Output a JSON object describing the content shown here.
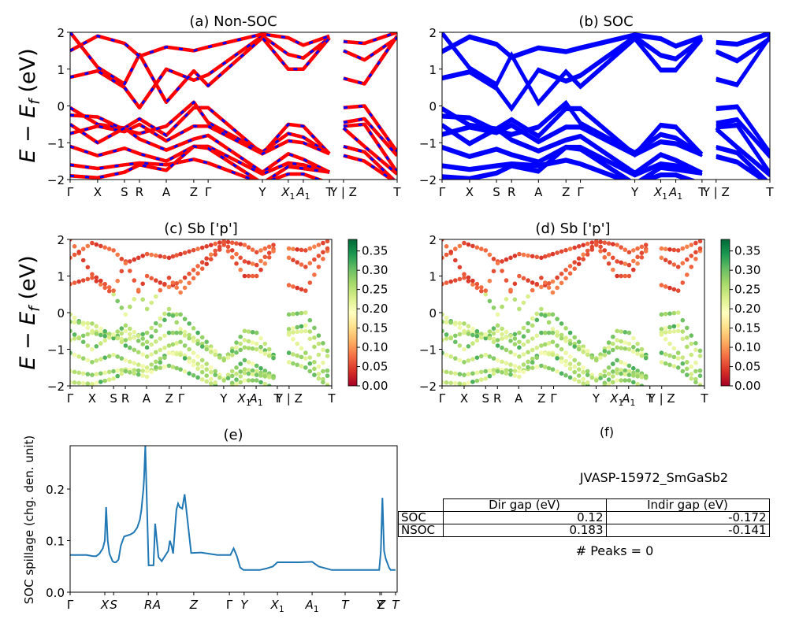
{
  "figure": {
    "ylabel_band": "E − E_f (eV)",
    "panels": {
      "a": {
        "title": "(a) Non-SOC"
      },
      "b": {
        "title": "(b) SOC"
      },
      "c": {
        "title": "(c)  Sb ['p']"
      },
      "d": {
        "title": "(d) Sb ['p']"
      },
      "e": {
        "title": "(e)"
      },
      "f": {
        "title": "(f)"
      }
    }
  },
  "chart_data": [
    {
      "id": "a",
      "type": "line",
      "title": "(a) Non-SOC",
      "ylabel": "E − E_f (eV)",
      "ylim": [
        -2,
        2
      ],
      "yticks": [
        -2,
        -1,
        0,
        1,
        2
      ],
      "kpath_labels": [
        "Γ",
        "X",
        "S",
        "R",
        "A",
        "Z",
        "Γ",
        "Y",
        "X1",
        "A1",
        "T",
        "Y | Z",
        "T"
      ],
      "kpath_positions": [
        0,
        0.084,
        0.166,
        0.212,
        0.294,
        0.378,
        0.422,
        0.588,
        0.667,
        0.713,
        0.793,
        0.836,
        1.0
      ],
      "series_style": "red solid with blue dashed overlay",
      "colors": [
        "#ff0000",
        "#0000ff"
      ]
    },
    {
      "id": "b",
      "type": "line",
      "title": "(b) SOC",
      "ylim": [
        -2,
        2
      ],
      "yticks": [
        -2,
        -1,
        0,
        1,
        2
      ],
      "kpath_labels": [
        "Γ",
        "X",
        "S",
        "R",
        "A",
        "Z",
        "Γ",
        "Y",
        "X1",
        "A1",
        "T",
        "Y | Z",
        "T"
      ],
      "series_style": "blue solid, doubled bands",
      "colors": [
        "#0000ff"
      ]
    },
    {
      "id": "c",
      "type": "scatter",
      "title": "(c)  Sb ['p']",
      "ylabel": "E − E_f (eV)",
      "ylim": [
        -2,
        2
      ],
      "yticks": [
        -2,
        -1,
        0,
        1,
        2
      ],
      "kpath_labels": [
        "Γ",
        "X",
        "S",
        "R",
        "A",
        "Z",
        "Γ",
        "Y",
        "X1",
        "A1",
        "T",
        "Y | Z",
        "T"
      ],
      "kpath_positions": [
        0,
        0.084,
        0.166,
        0.211,
        0.292,
        0.379,
        0.425,
        0.587,
        0.666,
        0.711,
        0.792,
        0.837,
        1.0
      ],
      "colorbar": {
        "cmap": "RdYlGn",
        "range": [
          0,
          0.38
        ],
        "ticks": [
          "0.00",
          "0.05",
          "0.10",
          "0.15",
          "0.20",
          "0.25",
          "0.30",
          "0.35"
        ]
      }
    },
    {
      "id": "d",
      "type": "scatter",
      "title": "(d) Sb ['p']",
      "ylim": [
        -2,
        2
      ],
      "yticks": [
        -2,
        -1,
        0,
        1,
        2
      ],
      "kpath_labels": [
        "Γ",
        "X",
        "S",
        "R",
        "A",
        "Z",
        "Γ",
        "Y",
        "X1",
        "A1",
        "T",
        "Y | Z",
        "T"
      ],
      "colorbar": {
        "cmap": "RdYlGn",
        "range": [
          0,
          0.38
        ],
        "ticks": [
          "0.00",
          "0.05",
          "0.10",
          "0.15",
          "0.20",
          "0.25",
          "0.30",
          "0.35"
        ]
      }
    },
    {
      "id": "e",
      "type": "line",
      "title": "(e)",
      "ylabel": "SOC spillage (chg. den. unit)",
      "ylim": [
        0,
        0.284
      ],
      "yticks": [
        0.0,
        0.1,
        0.2
      ],
      "ytick_labels": [
        "0.0",
        "0.1",
        "0.2"
      ],
      "xtick_labels": [
        "Γ",
        "X",
        "S",
        "R",
        "A",
        "Z",
        "Γ",
        "Y",
        "X1",
        "A1",
        "T",
        "Y",
        "Z",
        "T"
      ],
      "xtick_positions": [
        0,
        0.106,
        0.133,
        0.239,
        0.265,
        0.378,
        0.487,
        0.532,
        0.634,
        0.74,
        0.841,
        0.947,
        0.952,
        0.995
      ],
      "color": "#1f77b4",
      "x": [
        0,
        0.02,
        0.05,
        0.07,
        0.08,
        0.09,
        0.1,
        0.106,
        0.11,
        0.115,
        0.12,
        0.13,
        0.135,
        0.14,
        0.148,
        0.155,
        0.165,
        0.175,
        0.185,
        0.195,
        0.205,
        0.213,
        0.218,
        0.221,
        0.224,
        0.226,
        0.23,
        0.24,
        0.245,
        0.25,
        0.255,
        0.26,
        0.27,
        0.28,
        0.29,
        0.3,
        0.305,
        0.31,
        0.315,
        0.325,
        0.33,
        0.335,
        0.343,
        0.35,
        0.37,
        0.4,
        0.45,
        0.487,
        0.49,
        0.5,
        0.51,
        0.52,
        0.53,
        0.55,
        0.58,
        0.6,
        0.62,
        0.634,
        0.66,
        0.7,
        0.74,
        0.76,
        0.8,
        0.85,
        0.9,
        0.93,
        0.945,
        0.95,
        0.955,
        0.96,
        0.965,
        0.975,
        0.98,
        0.99,
        0.995
      ],
      "values": [
        0.072,
        0.072,
        0.072,
        0.07,
        0.07,
        0.075,
        0.085,
        0.1,
        0.165,
        0.1,
        0.075,
        0.06,
        0.058,
        0.058,
        0.063,
        0.09,
        0.108,
        0.11,
        0.112,
        0.116,
        0.125,
        0.14,
        0.16,
        0.18,
        0.2,
        0.22,
        0.284,
        0.052,
        0.052,
        0.052,
        0.052,
        0.133,
        0.068,
        0.06,
        0.07,
        0.08,
        0.1,
        0.09,
        0.075,
        0.16,
        0.172,
        0.165,
        0.162,
        0.19,
        0.076,
        0.077,
        0.072,
        0.072,
        0.072,
        0.085,
        0.07,
        0.048,
        0.043,
        0.043,
        0.043,
        0.046,
        0.05,
        0.058,
        0.058,
        0.058,
        0.059,
        0.05,
        0.043,
        0.043,
        0.043,
        0.043,
        0.043,
        0.08,
        0.183,
        0.08,
        0.065,
        0.048,
        0.043,
        0.043,
        0.043
      ]
    },
    {
      "id": "f",
      "type": "table",
      "title": "(f)",
      "material": "JVASP-15972_SmGaSb2",
      "columns": [
        "Dir gap (eV)",
        "Indir gap (eV)"
      ],
      "rows": [
        {
          "label": "SOC",
          "values": [
            "0.12",
            "-0.172"
          ]
        },
        {
          "label": "NSOC",
          "values": [
            "0.183",
            "-0.141"
          ]
        }
      ],
      "footer": "# Peaks = 0"
    }
  ]
}
